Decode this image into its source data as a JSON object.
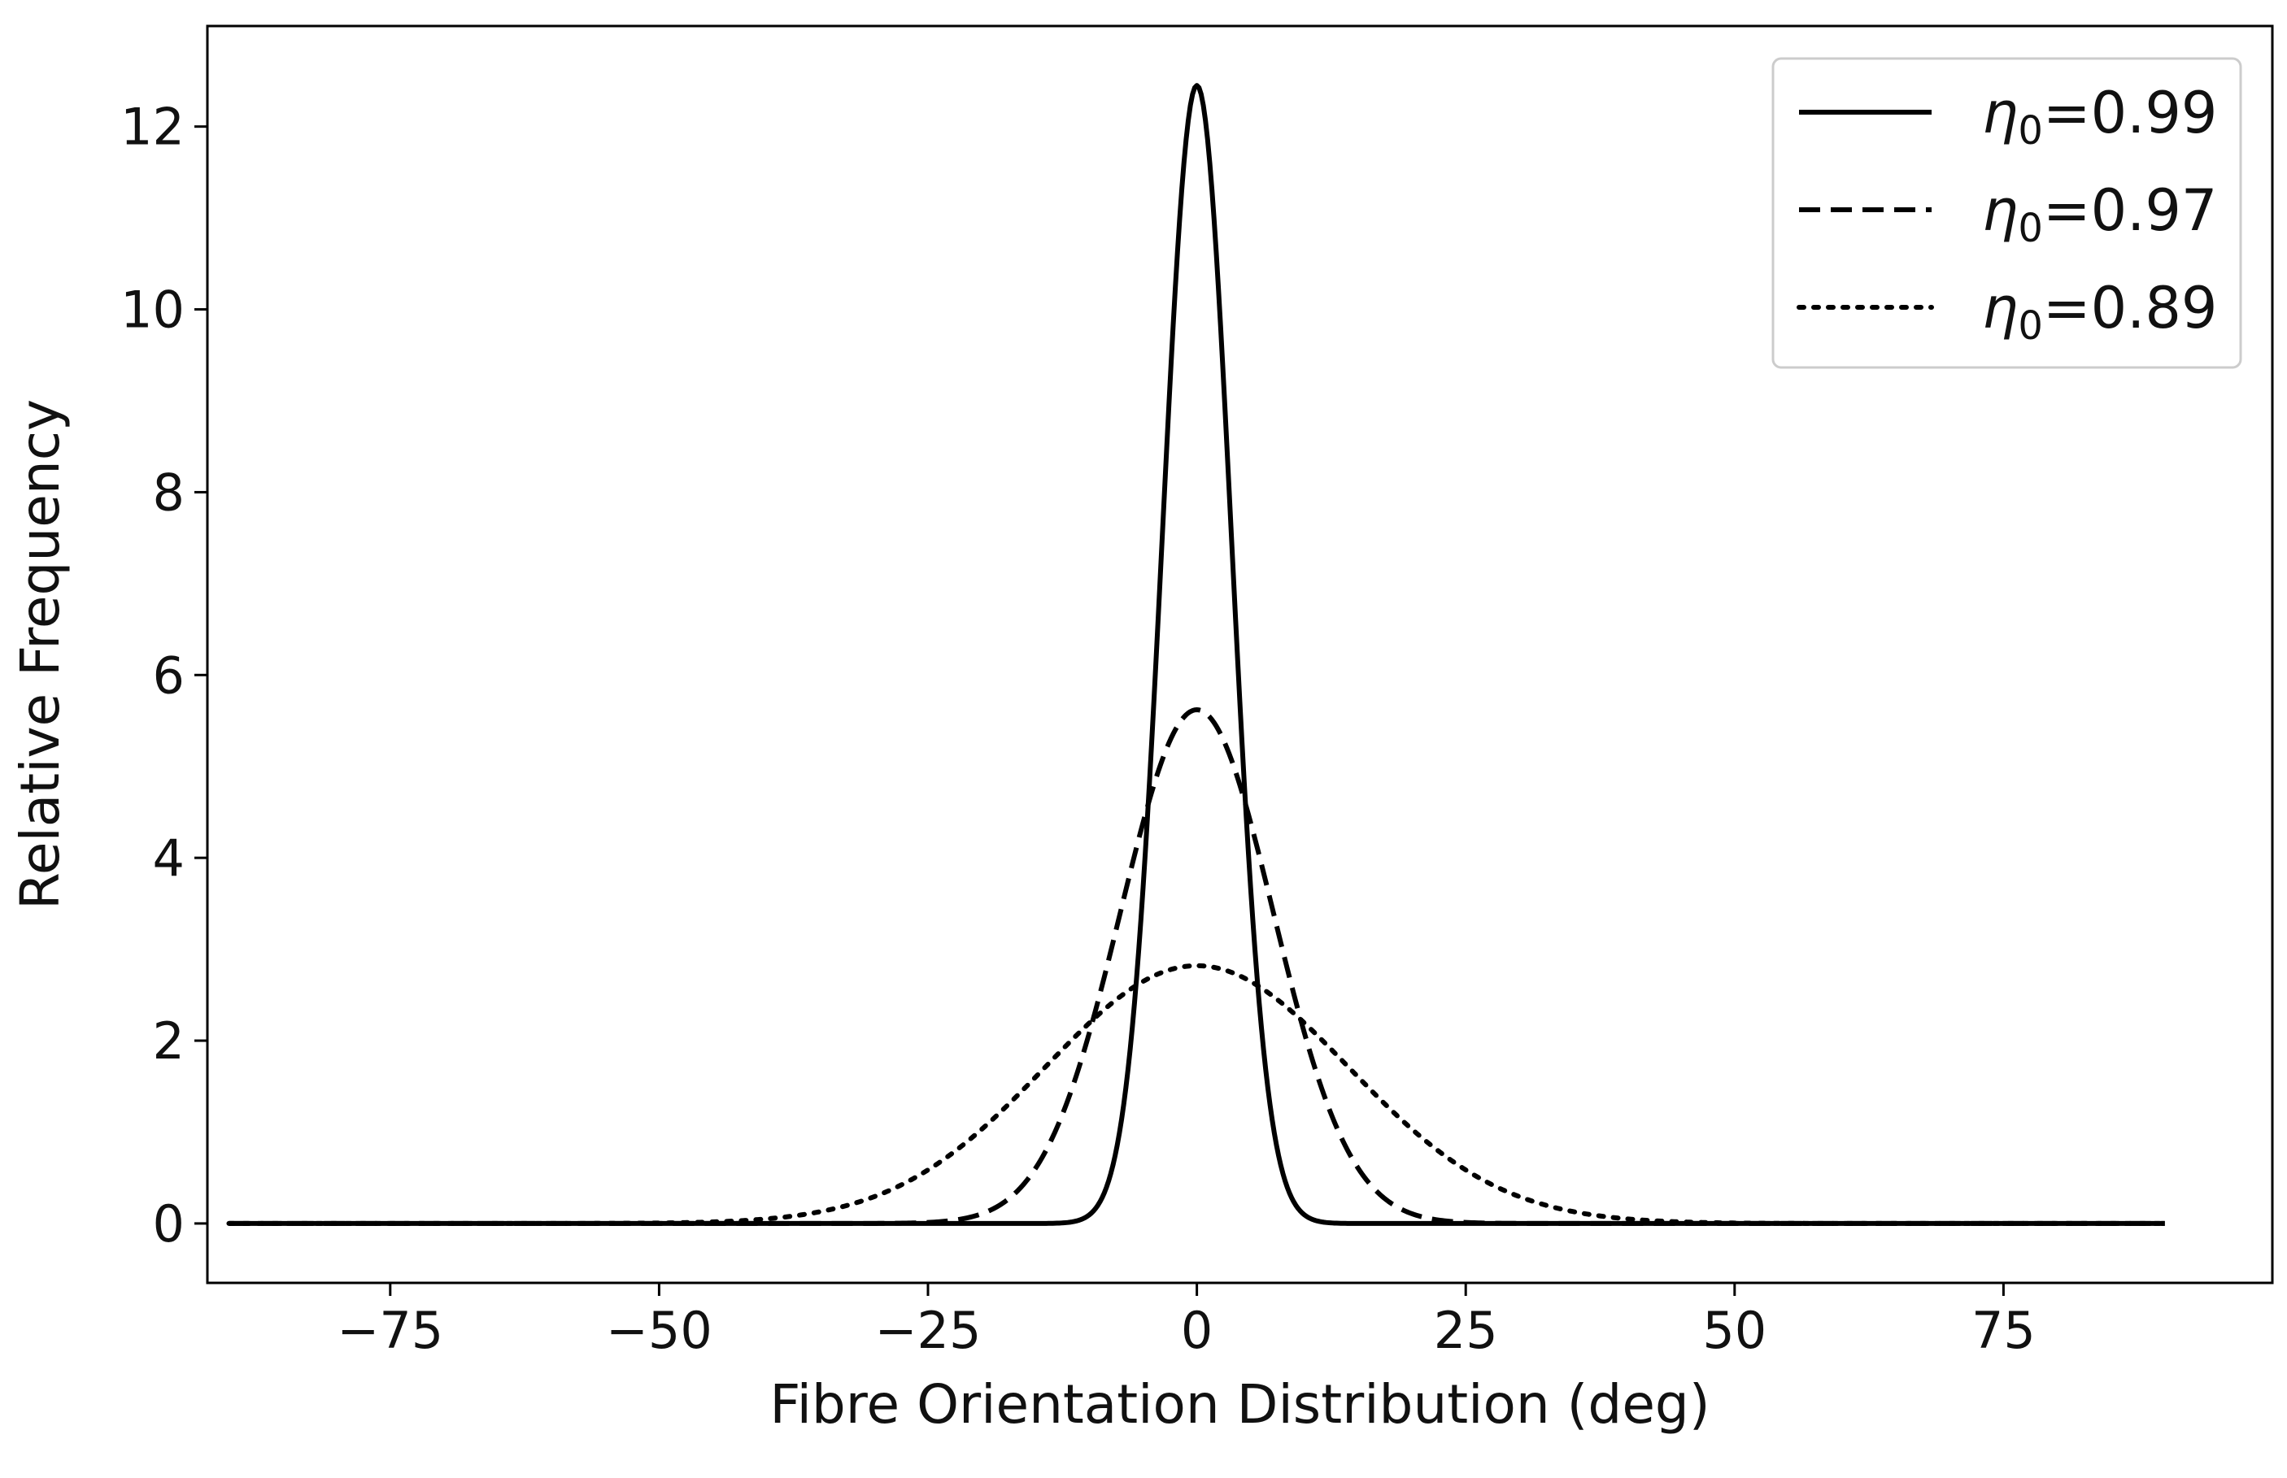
{
  "chart_data": {
    "type": "line",
    "xlabel": "Fibre Orientation Distribution (deg)",
    "ylabel": "Relative Frequency",
    "xlim": [
      -92,
      100
    ],
    "ylim": [
      -0.65,
      13.1
    ],
    "xticks": [
      -75,
      -50,
      -25,
      0,
      25,
      50,
      75
    ],
    "yticks": [
      0,
      2,
      4,
      6,
      8,
      10,
      12
    ],
    "xtick_labels": [
      "−75",
      "−50",
      "−25",
      "0",
      "25",
      "50",
      "75"
    ],
    "ytick_labels": [
      "0",
      "2",
      "4",
      "6",
      "8",
      "10",
      "12"
    ],
    "grid": false,
    "legend_position": "top-right",
    "x_range": [
      -90,
      90
    ],
    "series": [
      {
        "name": "η0=0.99",
        "label_base": "η",
        "label_sub": "0",
        "label_rest": "=0.99",
        "style": "solid",
        "peak": 12.45,
        "sigma_deg": 3.2,
        "color": "#000000"
      },
      {
        "name": "η0=0.97",
        "label_base": "η",
        "label_sub": "0",
        "label_rest": "=0.97",
        "style": "dashed",
        "peak": 5.62,
        "sigma_deg": 7.1,
        "color": "#000000"
      },
      {
        "name": "η0=0.89",
        "label_base": "η",
        "label_sub": "0",
        "label_rest": "=0.89",
        "style": "dotted",
        "peak": 2.82,
        "sigma_deg": 14.1,
        "color": "#000000"
      }
    ]
  }
}
